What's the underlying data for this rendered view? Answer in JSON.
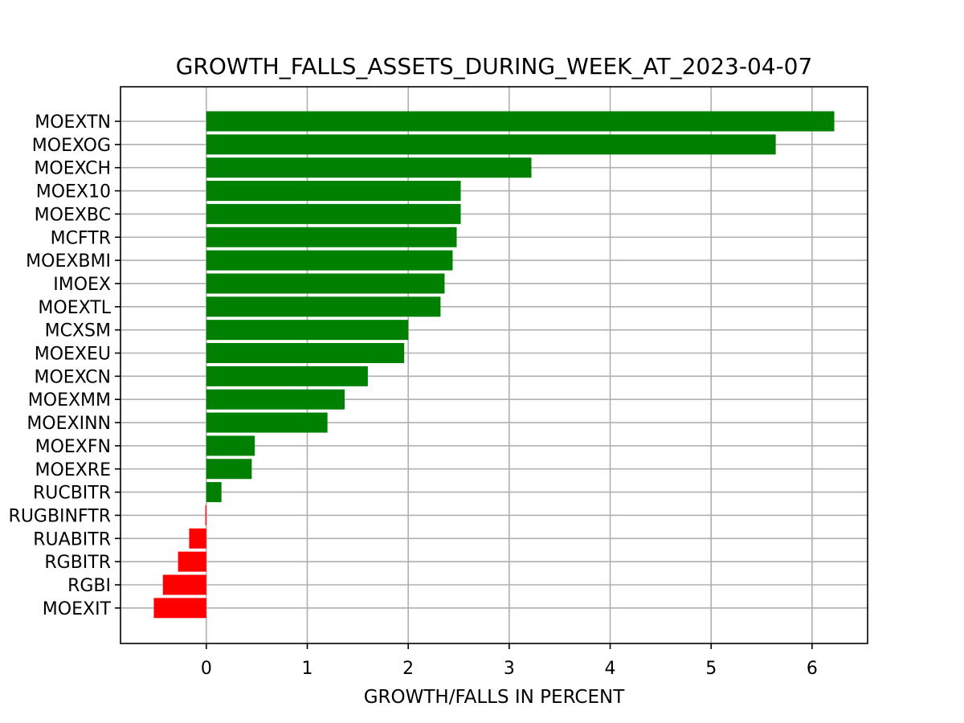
{
  "chart_data": {
    "type": "bar",
    "orientation": "horizontal",
    "title": "GROWTH_FALLS_ASSETS_DURING_WEEK_AT_2023-04-07",
    "xlabel": "GROWTH/FALLS IN PERCENT",
    "ylabel": "",
    "xlim": [
      -0.85,
      6.55
    ],
    "xticks": [
      0,
      1,
      2,
      3,
      4,
      5,
      6
    ],
    "grid": true,
    "categories": [
      "MOEXTN",
      "MOEXOG",
      "MOEXCH",
      "MOEX10",
      "MOEXBC",
      "MCFTR",
      "MOEXBMI",
      "IMOEX",
      "MOEXTL",
      "MCXSM",
      "MOEXEU",
      "MOEXCN",
      "MOEXMM",
      "MOEXINN",
      "MOEXFN",
      "MOEXRE",
      "RUCBITR",
      "RUGBINFTR",
      "RUABITR",
      "RGBITR",
      "RGBI",
      "MOEXIT"
    ],
    "values": [
      6.22,
      5.64,
      3.22,
      2.52,
      2.52,
      2.48,
      2.44,
      2.36,
      2.32,
      2.0,
      1.96,
      1.6,
      1.37,
      1.2,
      0.48,
      0.45,
      0.15,
      -0.01,
      -0.17,
      -0.28,
      -0.43,
      -0.52
    ],
    "colors": {
      "positive": "#008000",
      "negative": "#ff0000"
    }
  }
}
